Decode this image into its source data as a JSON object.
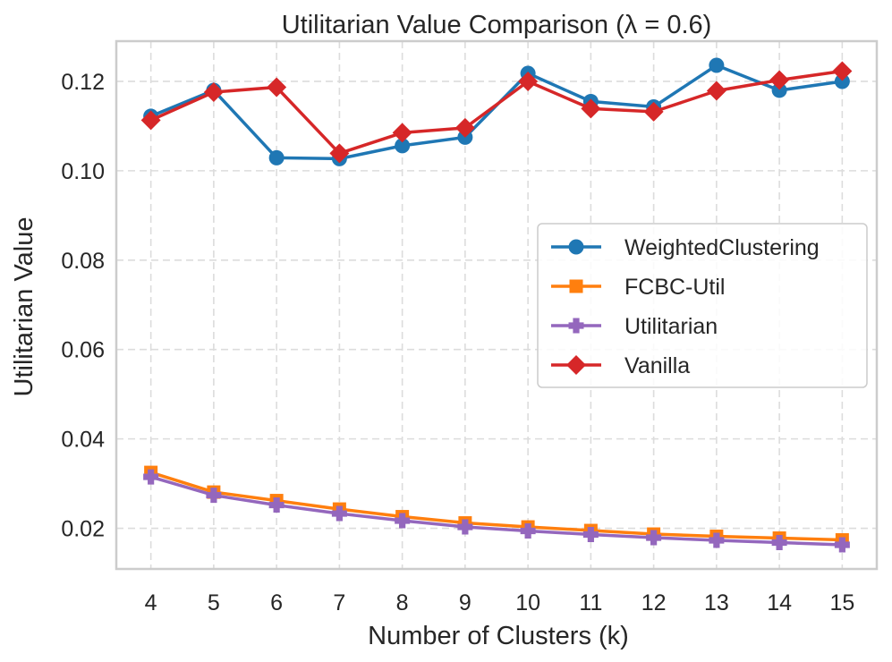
{
  "chart_data": {
    "type": "line",
    "title": "Utilitarian Value Comparison (λ = 0.6)",
    "xlabel": "Number of Clusters (k)",
    "ylabel": "Utilitarian Value",
    "x": [
      4,
      5,
      6,
      7,
      8,
      9,
      10,
      11,
      12,
      13,
      14,
      15
    ],
    "x_tick_labels": [
      "4",
      "5",
      "6",
      "7",
      "8",
      "9",
      "10",
      "11",
      "12",
      "13",
      "14",
      "15"
    ],
    "y_ticks": [
      0.02,
      0.04,
      0.06,
      0.08,
      0.1,
      0.12
    ],
    "y_tick_labels": [
      "0.02",
      "0.04",
      "0.06",
      "0.08",
      "0.10",
      "0.12"
    ],
    "xlim": [
      3.45,
      15.55
    ],
    "ylim": [
      0.0109,
      0.129
    ],
    "grid": true,
    "legend_position": "center-right",
    "series": [
      {
        "name": "WeightedClustering",
        "color": "#1f77b4",
        "marker": "circle",
        "values": [
          0.1122,
          0.118,
          0.1029,
          0.1027,
          0.1056,
          0.1075,
          0.1218,
          0.1155,
          0.1143,
          0.1236,
          0.118,
          0.12
        ]
      },
      {
        "name": "FCBC-Util",
        "color": "#ff7f0e",
        "marker": "square",
        "values": [
          0.0325,
          0.0281,
          0.0262,
          0.0243,
          0.0226,
          0.0212,
          0.0203,
          0.0195,
          0.0187,
          0.0182,
          0.0178,
          0.0174
        ]
      },
      {
        "name": "Utilitarian",
        "color": "#9467bd",
        "marker": "plus",
        "values": [
          0.0315,
          0.0274,
          0.0252,
          0.0233,
          0.0217,
          0.0203,
          0.0194,
          0.0186,
          0.0179,
          0.0173,
          0.0168,
          0.0163
        ]
      },
      {
        "name": "Vanilla",
        "color": "#d62728",
        "marker": "diamond",
        "values": [
          0.1113,
          0.1176,
          0.1187,
          0.1039,
          0.1085,
          0.1096,
          0.12,
          0.1139,
          0.1132,
          0.1179,
          0.1203,
          0.1223
        ]
      }
    ]
  }
}
